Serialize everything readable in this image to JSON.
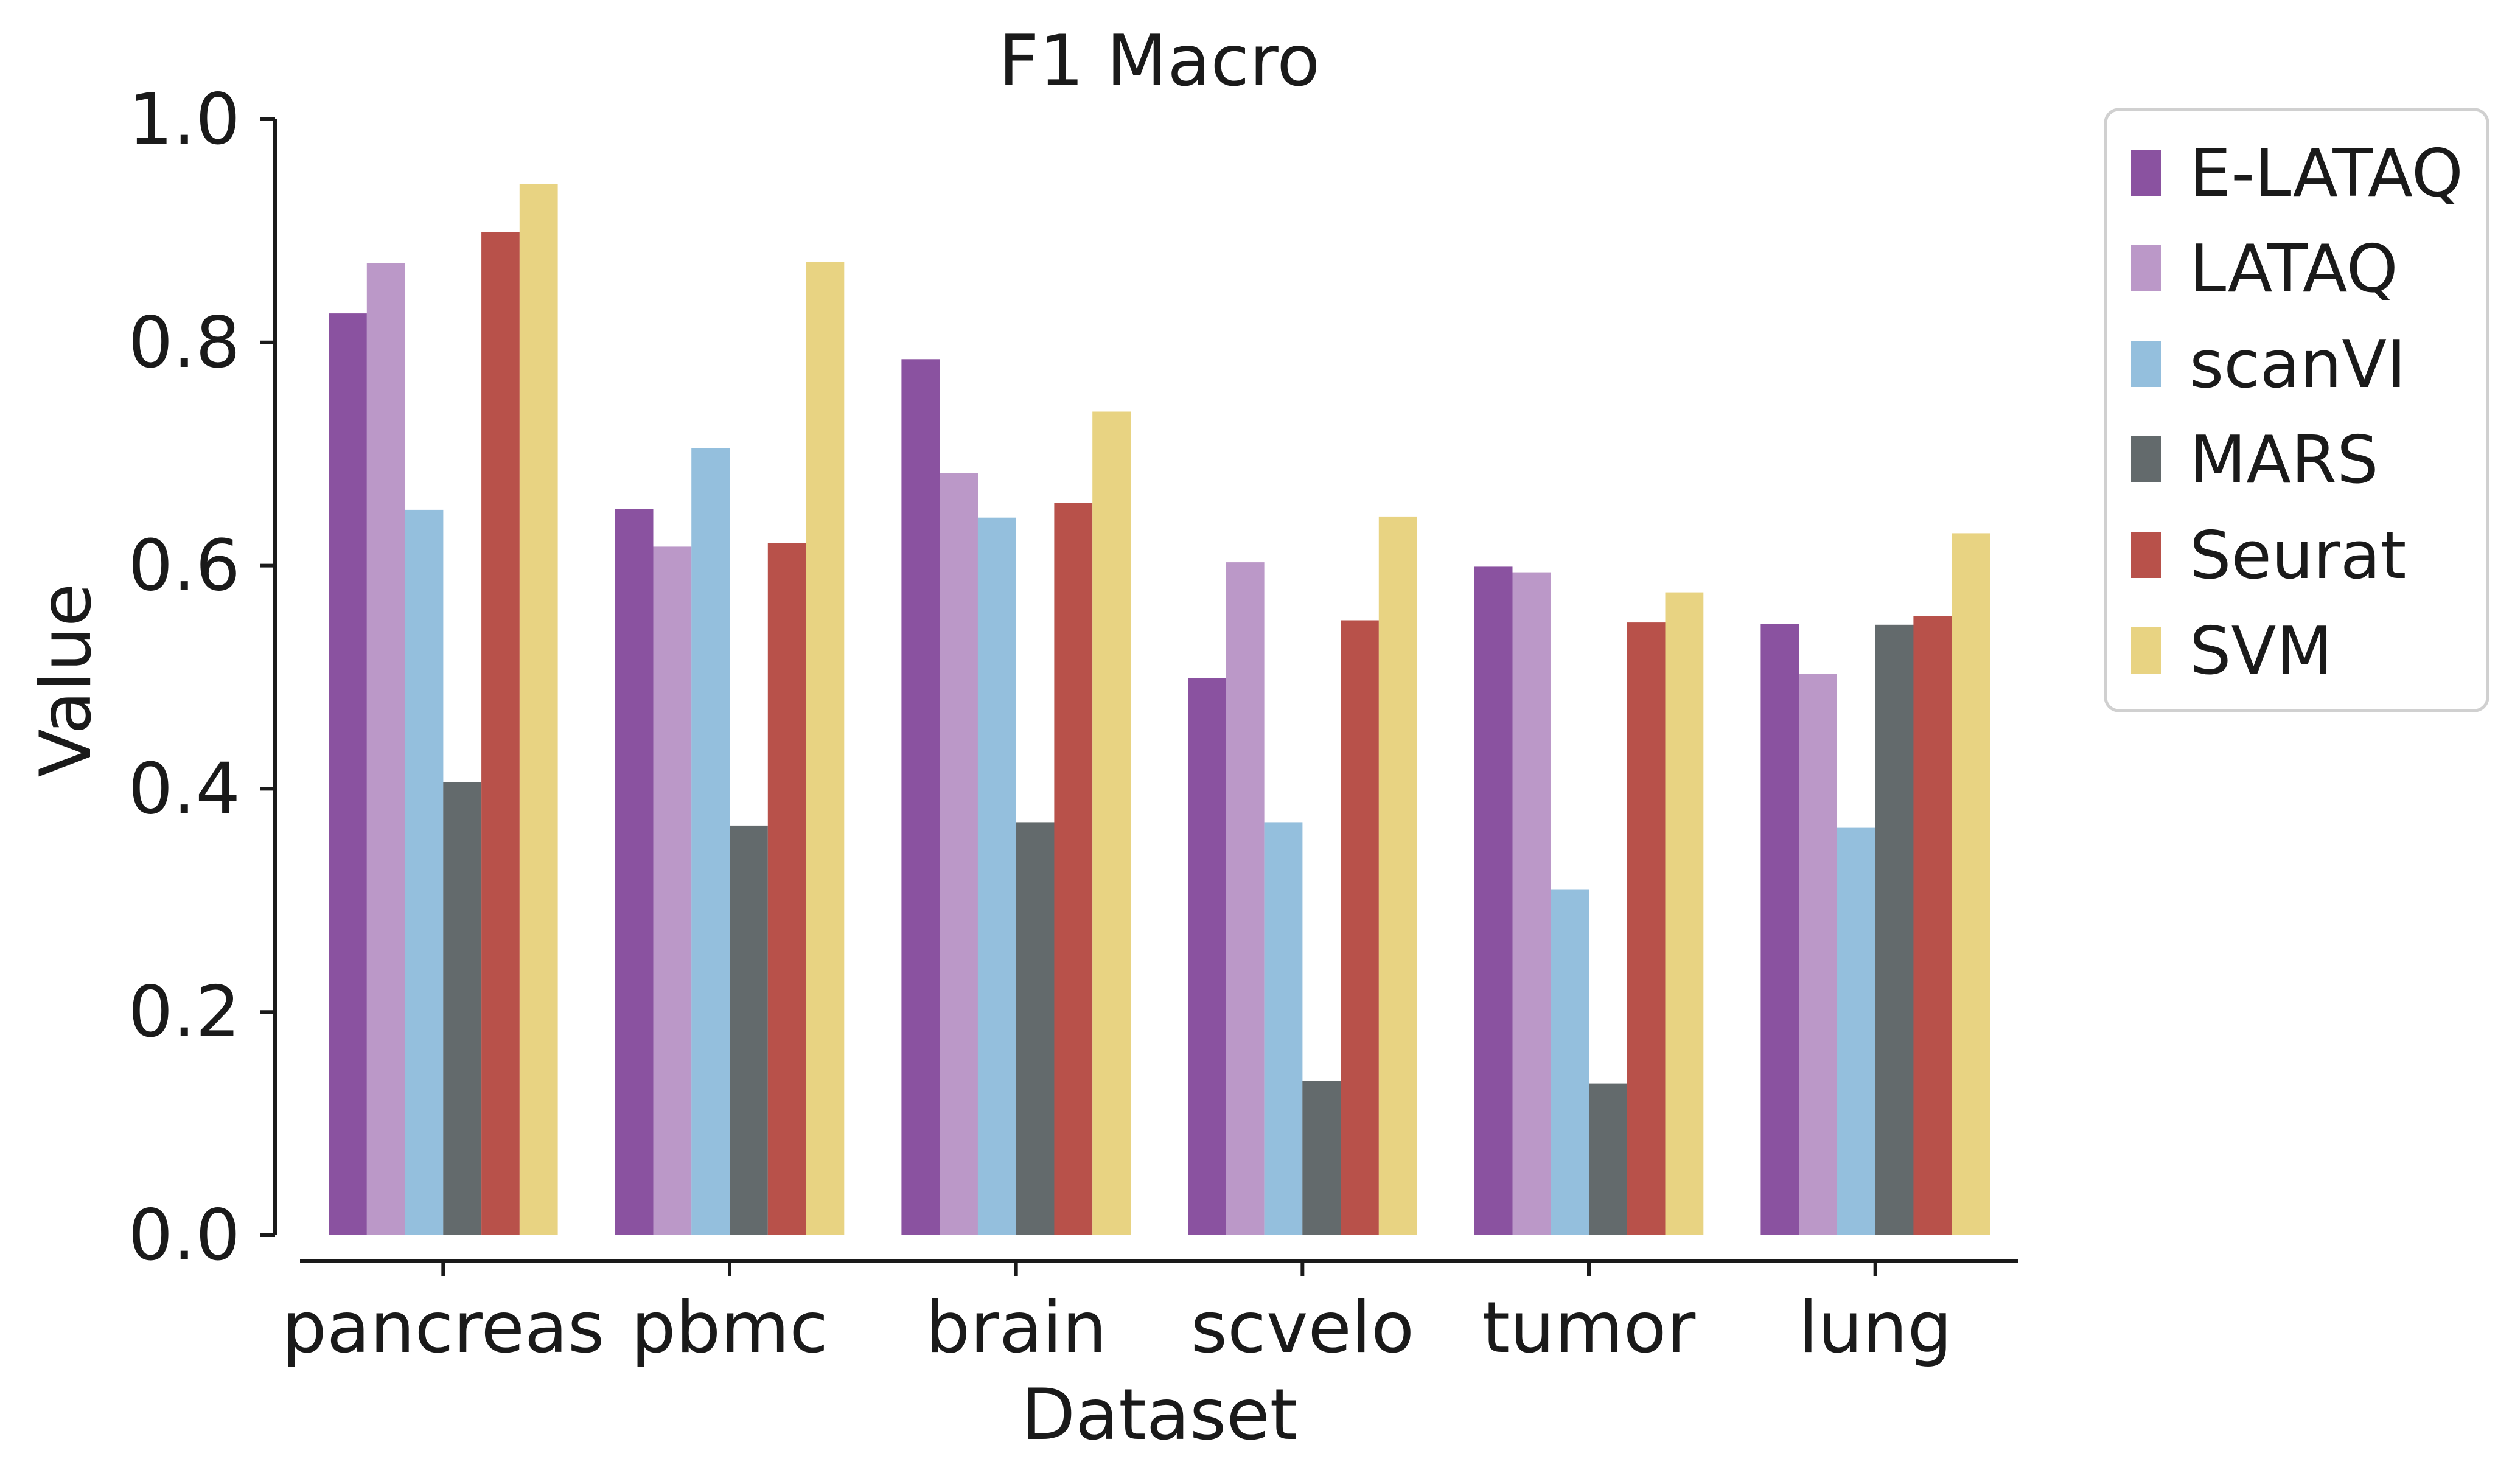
{
  "chart_data": {
    "type": "bar",
    "title": "F1 Macro",
    "xlabel": "Dataset",
    "ylabel": "Value",
    "ylim": [
      0,
      1.0
    ],
    "yticks": [
      "0.0",
      "0.2",
      "0.4",
      "0.6",
      "0.8",
      "1.0"
    ],
    "categories": [
      "pancreas",
      "pbmc",
      "brain",
      "scvelo",
      "tumor",
      "lung"
    ],
    "legend_position": "outside-top-right",
    "grid": false,
    "series": [
      {
        "name": "E-LATAQ",
        "color": "#8a52a0",
        "values": [
          0.826,
          0.651,
          0.785,
          0.499,
          0.599,
          0.548
        ]
      },
      {
        "name": "LATAQ",
        "color": "#bb98c8",
        "values": [
          0.871,
          0.617,
          0.683,
          0.603,
          0.594,
          0.503
        ]
      },
      {
        "name": "scanVI",
        "color": "#94bfdd",
        "values": [
          0.65,
          0.705,
          0.643,
          0.37,
          0.31,
          0.365
        ]
      },
      {
        "name": "MARS",
        "color": "#636a6c",
        "values": [
          0.406,
          0.367,
          0.37,
          0.138,
          0.136,
          0.547
        ]
      },
      {
        "name": "Seurat",
        "color": "#b8514a",
        "values": [
          0.899,
          0.62,
          0.656,
          0.551,
          0.549,
          0.555
        ]
      },
      {
        "name": "SVM",
        "color": "#e8d382",
        "values": [
          0.942,
          0.872,
          0.738,
          0.644,
          0.576,
          0.629
        ]
      }
    ]
  }
}
